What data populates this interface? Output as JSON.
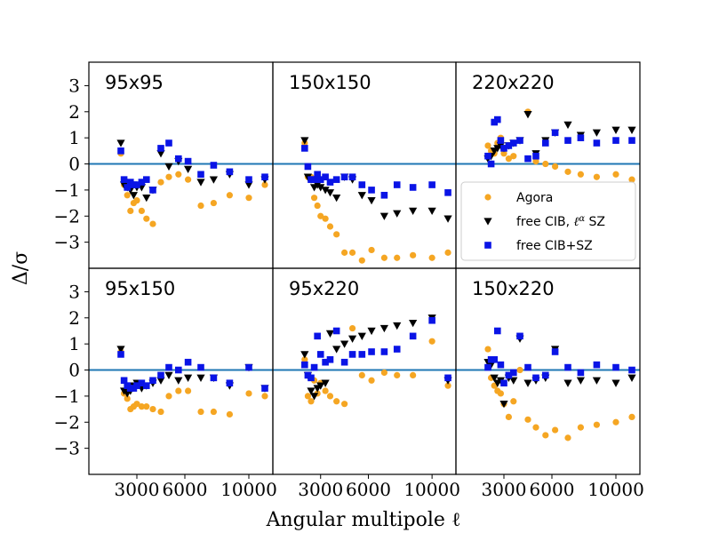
{
  "chart_data": {
    "type": "scatter",
    "layout": "grid 2x3 shared axes",
    "xlabel": "Angular multipole ℓ",
    "ylabel": "Δ/σ",
    "xlim": [
      0,
      11500
    ],
    "ylim": [
      -4.0,
      3.9
    ],
    "x_ticks": [
      3000,
      6000,
      10000
    ],
    "x_tick_labels": [
      "3000",
      "6000",
      "10000"
    ],
    "y_ticks": [
      -3,
      -2,
      -1,
      0,
      1,
      2,
      3
    ],
    "y_tick_labels": [
      "−3",
      "−2",
      "−1",
      "0",
      "1",
      "2",
      "3"
    ],
    "zero_line_color": "#1f77b4",
    "legend": {
      "placement": "right, middle of top-right panel",
      "entries": [
        {
          "label": "Agora",
          "marker": "circle",
          "color": "#f5a623"
        },
        {
          "label": "free CIB, ℓ^α SZ",
          "label_parts": [
            "free CIB, ",
            "ℓ",
            "α",
            " SZ"
          ],
          "marker": "triangle-down",
          "color": "#000000"
        },
        {
          "label": "free CIB+SZ",
          "marker": "square",
          "color": "#0a14e6"
        }
      ]
    },
    "panels": [
      {
        "title": "95x95",
        "series": [
          {
            "name": "Agora",
            "x": [
              2000,
              2200,
              2400,
              2600,
              2800,
              3000,
              3300,
              3600,
              4000,
              4500,
              5000,
              5600,
              6200,
              7000,
              7800,
              8800,
              10000,
              11000
            ],
            "y": [
              0.4,
              -0.8,
              -1.2,
              -1.8,
              -1.5,
              -1.4,
              -1.8,
              -2.1,
              -2.3,
              -0.7,
              -0.5,
              -0.4,
              -0.6,
              -1.6,
              -1.5,
              -1.2,
              -1.3,
              -0.8
            ]
          },
          {
            "name": "free CIB, ℓ^α SZ",
            "x": [
              2000,
              2200,
              2400,
              2600,
              2800,
              3000,
              3300,
              3600,
              4000,
              4500,
              5000,
              5600,
              6200,
              7000,
              7800,
              8800,
              10000,
              11000
            ],
            "y": [
              0.8,
              -0.8,
              -0.9,
              -1.0,
              -1.2,
              -0.9,
              -0.9,
              -1.3,
              -1.0,
              0.4,
              -0.1,
              0.1,
              -0.2,
              -0.7,
              -0.6,
              -0.4,
              -0.8,
              -0.6
            ]
          },
          {
            "name": "free CIB+SZ",
            "x": [
              2000,
              2200,
              2400,
              2600,
              2800,
              3000,
              3300,
              3600,
              4000,
              4500,
              5000,
              5600,
              6200,
              7000,
              7800,
              8800,
              10000,
              11000
            ],
            "y": [
              0.5,
              -0.6,
              -0.9,
              -0.7,
              -0.8,
              -0.8,
              -0.7,
              -0.6,
              -1.0,
              0.6,
              0.8,
              0.2,
              0.1,
              -0.4,
              -0.05,
              -0.3,
              -0.6,
              -0.5
            ]
          }
        ]
      },
      {
        "title": "150x150",
        "series": [
          {
            "name": "Agora",
            "x": [
              2000,
              2200,
              2400,
              2600,
              2800,
              3000,
              3300,
              3600,
              4000,
              4500,
              5000,
              5600,
              6200,
              7000,
              7800,
              8800,
              10000,
              11000
            ],
            "y": [
              0.8,
              -0.5,
              -0.5,
              -1.3,
              -1.6,
              -2.0,
              -2.1,
              -2.4,
              -2.7,
              -3.4,
              -3.4,
              -3.7,
              -3.3,
              -3.6,
              -3.6,
              -3.5,
              -3.6,
              -3.4
            ]
          },
          {
            "name": "free CIB, ℓ^α SZ",
            "x": [
              2000,
              2200,
              2400,
              2600,
              2800,
              3000,
              3300,
              3600,
              4000,
              4500,
              5000,
              5600,
              6200,
              7000,
              7800,
              8800,
              10000,
              11000
            ],
            "y": [
              0.9,
              -0.5,
              -0.6,
              -0.9,
              -0.8,
              -0.9,
              -1.0,
              -1.1,
              -1.3,
              -0.5,
              -0.6,
              -1.2,
              -1.4,
              -2.0,
              -1.9,
              -1.8,
              -1.8,
              -2.1
            ]
          },
          {
            "name": "free CIB+SZ",
            "x": [
              2000,
              2200,
              2400,
              2600,
              2800,
              3000,
              3300,
              3600,
              4000,
              4500,
              5000,
              5600,
              6200,
              7000,
              7800,
              8800,
              10000,
              11000
            ],
            "y": [
              0.6,
              -0.1,
              -0.6,
              -0.6,
              -0.4,
              -0.6,
              -0.5,
              -0.7,
              -0.6,
              -0.5,
              -0.5,
              -0.8,
              -1.0,
              -1.2,
              -0.8,
              -0.9,
              -0.8,
              -1.1
            ]
          }
        ]
      },
      {
        "title": "220x220",
        "series": [
          {
            "name": "Agora",
            "x": [
              2000,
              2200,
              2400,
              2600,
              2800,
              3000,
              3300,
              3600,
              4000,
              4500,
              5000,
              5600,
              6200,
              7000,
              7800,
              8800,
              10000,
              11000
            ],
            "y": [
              0.7,
              0.5,
              0.4,
              0.8,
              1.0,
              0.4,
              0.2,
              0.3,
              0.9,
              2.0,
              0.1,
              0.0,
              -0.1,
              -0.3,
              -0.4,
              -0.5,
              -0.4,
              -0.6
            ]
          },
          {
            "name": "free CIB, ℓ^α SZ",
            "x": [
              2000,
              2200,
              2400,
              2600,
              2800,
              3000,
              3300,
              3600,
              4000,
              4500,
              5000,
              5600,
              6200,
              7000,
              7800,
              8800,
              10000,
              11000
            ],
            "y": [
              0.2,
              0.3,
              0.5,
              0.6,
              0.7,
              0.6,
              0.7,
              0.8,
              0.9,
              1.9,
              0.4,
              0.9,
              1.2,
              1.5,
              1.1,
              1.2,
              1.3,
              1.3
            ]
          },
          {
            "name": "free CIB+SZ",
            "x": [
              2000,
              2200,
              2400,
              2600,
              2800,
              3000,
              3300,
              3600,
              4000,
              4500,
              5000,
              5600,
              6200,
              7000,
              7800,
              8800,
              10000,
              11000
            ],
            "y": [
              0.3,
              0.0,
              1.6,
              1.7,
              0.9,
              0.6,
              0.7,
              0.8,
              0.9,
              0.2,
              0.3,
              0.8,
              1.2,
              0.9,
              1.0,
              0.8,
              0.9,
              0.9
            ]
          }
        ]
      },
      {
        "title": "95x150",
        "series": [
          {
            "name": "Agora",
            "x": [
              2000,
              2200,
              2400,
              2600,
              2800,
              3000,
              3300,
              3600,
              4000,
              4500,
              5000,
              5600,
              6200,
              7000,
              7800,
              8800,
              10000,
              11000
            ],
            "y": [
              0.7,
              -0.9,
              -1.1,
              -1.5,
              -1.4,
              -1.3,
              -1.4,
              -1.4,
              -1.5,
              -1.6,
              -1.0,
              -0.8,
              -0.8,
              -1.6,
              -1.6,
              -1.7,
              -0.9,
              -1.0
            ]
          },
          {
            "name": "free CIB, ℓ^α SZ",
            "x": [
              2000,
              2200,
              2400,
              2600,
              2800,
              3000,
              3300,
              3600,
              4000,
              4500,
              5000,
              5600,
              6200,
              7000,
              7800,
              8800,
              10000,
              11000
            ],
            "y": [
              0.8,
              -0.8,
              -0.9,
              -0.8,
              -0.6,
              -0.5,
              -0.7,
              -0.6,
              -0.5,
              -0.4,
              -0.2,
              -0.4,
              -0.3,
              -0.3,
              -0.3,
              -0.6,
              0.1,
              -0.7
            ]
          },
          {
            "name": "free CIB+SZ",
            "x": [
              2000,
              2200,
              2400,
              2600,
              2800,
              3000,
              3300,
              3600,
              4000,
              4500,
              5000,
              5600,
              6200,
              7000,
              7800,
              8800,
              10000,
              11000
            ],
            "y": [
              0.6,
              -0.4,
              -0.6,
              -0.7,
              -0.7,
              -0.6,
              -0.5,
              -0.6,
              -0.4,
              -0.2,
              0.1,
              0.0,
              0.3,
              0.1,
              -0.3,
              -0.5,
              0.1,
              -0.7
            ]
          }
        ]
      },
      {
        "title": "95x220",
        "series": [
          {
            "name": "Agora",
            "x": [
              2000,
              2200,
              2400,
              2600,
              2800,
              3000,
              3300,
              3600,
              4000,
              4500,
              5000,
              5600,
              6200,
              7000,
              7800,
              8800,
              10000,
              11000
            ],
            "y": [
              0.4,
              -1.0,
              -1.2,
              -0.4,
              -0.9,
              -0.5,
              -0.8,
              -1.0,
              -1.2,
              -1.3,
              1.6,
              -0.2,
              -0.4,
              -0.1,
              -0.2,
              -0.2,
              1.1,
              -0.6
            ]
          },
          {
            "name": "free CIB, ℓ^α SZ",
            "x": [
              2000,
              2200,
              2400,
              2600,
              2800,
              3000,
              3300,
              3600,
              4000,
              4500,
              5000,
              5600,
              6200,
              7000,
              7800,
              8800,
              10000,
              11000
            ],
            "y": [
              0.6,
              -0.2,
              -0.8,
              -1.0,
              -0.7,
              -0.6,
              -0.5,
              1.4,
              0.8,
              1.0,
              1.2,
              1.3,
              1.5,
              1.6,
              1.7,
              1.8,
              2.0,
              -0.4
            ]
          },
          {
            "name": "free CIB+SZ",
            "x": [
              2000,
              2200,
              2400,
              2600,
              2800,
              3000,
              3300,
              3600,
              4000,
              4500,
              5000,
              5600,
              6200,
              7000,
              7800,
              8800,
              10000,
              11000
            ],
            "y": [
              0.2,
              -0.2,
              -0.3,
              0.1,
              1.3,
              0.6,
              0.3,
              0.4,
              1.5,
              0.3,
              0.6,
              0.6,
              0.7,
              0.7,
              0.8,
              1.3,
              1.9,
              -0.3
            ]
          }
        ]
      },
      {
        "title": "150x220",
        "series": [
          {
            "name": "Agora",
            "x": [
              2000,
              2200,
              2400,
              2600,
              2800,
              3000,
              3300,
              3600,
              4000,
              4500,
              5000,
              5600,
              6200,
              7000,
              7800,
              8800,
              10000,
              11000
            ],
            "y": [
              0.8,
              -0.3,
              -0.6,
              -0.8,
              -0.9,
              -1.3,
              -1.8,
              -1.2,
              0.0,
              -1.9,
              -2.2,
              -2.5,
              -2.3,
              -2.6,
              -2.2,
              -2.1,
              -2.0,
              -1.8
            ]
          },
          {
            "name": "free CIB, ℓ^α SZ",
            "x": [
              2000,
              2200,
              2400,
              2600,
              2800,
              3000,
              3300,
              3600,
              4000,
              4500,
              5000,
              5600,
              6200,
              7000,
              7800,
              8800,
              10000,
              11000
            ],
            "y": [
              0.3,
              0.2,
              -0.3,
              -0.5,
              -0.4,
              -1.3,
              -0.3,
              -0.4,
              1.2,
              -0.5,
              -0.4,
              -0.3,
              0.8,
              -0.5,
              -0.4,
              -0.4,
              -0.5,
              -0.3
            ]
          },
          {
            "name": "free CIB+SZ",
            "x": [
              2000,
              2200,
              2400,
              2600,
              2800,
              3000,
              3300,
              3600,
              4000,
              4500,
              5000,
              5600,
              6200,
              7000,
              7800,
              8800,
              10000,
              11000
            ],
            "y": [
              0.1,
              0.4,
              0.4,
              1.5,
              0.2,
              -0.5,
              -0.2,
              -0.1,
              1.3,
              0.1,
              -0.3,
              -0.2,
              0.7,
              0.1,
              -0.1,
              0.2,
              0.1,
              0.0
            ]
          }
        ]
      }
    ]
  }
}
